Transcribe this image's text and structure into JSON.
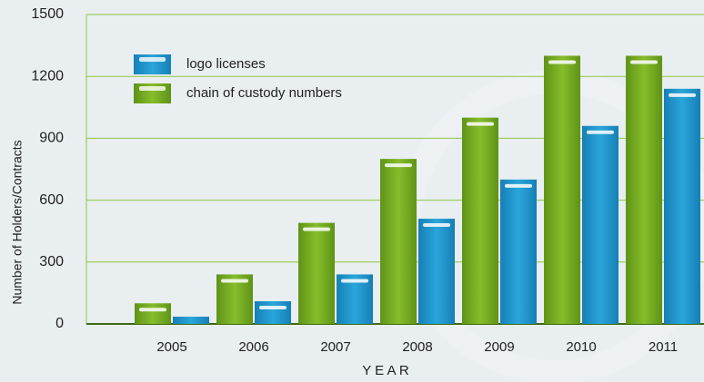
{
  "chart_data": {
    "type": "bar",
    "x_label": "Y E A R",
    "y_label": "Number of Holders/Contracts",
    "categories": [
      "2005",
      "2006",
      "2007",
      "2008",
      "2009",
      "2010",
      "2011"
    ],
    "series": [
      {
        "name": "logo licenses",
        "color": "#1e8fc8",
        "values": [
          35,
          110,
          240,
          510,
          700,
          960,
          1140
        ]
      },
      {
        "name": "chain of custody numbers",
        "color": "#6fa51f",
        "values": [
          100,
          240,
          490,
          800,
          1000,
          1300,
          1300
        ]
      }
    ],
    "ylim": [
      0,
      1500
    ],
    "yticks": [
      0,
      300,
      600,
      900,
      1200,
      1500
    ],
    "grid": true
  }
}
